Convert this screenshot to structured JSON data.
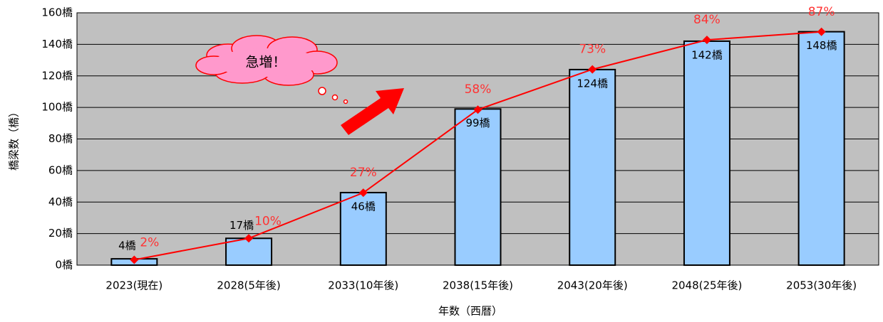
{
  "chart_data": {
    "type": "bar",
    "x_label": "年数（西暦）",
    "y_label": "橋梁数（橋）",
    "annotation": "急増！",
    "categories": [
      "2023(現在)",
      "2028(5年後)",
      "2033(10年後)",
      "2038(15年後)",
      "2043(20年後)",
      "2048(25年後)",
      "2053(30年後)"
    ],
    "series": [
      {
        "type": "bar",
        "color": "#99ccff",
        "values": [
          4,
          17,
          46,
          99,
          124,
          142,
          148
        ],
        "value_labels": [
          "4橋",
          "17橋",
          "46橋",
          "99橋",
          "124橋",
          "142橋",
          "148橋"
        ]
      },
      {
        "type": "line",
        "axis": "y2",
        "color": "#ff0000",
        "values": [
          2,
          10,
          27,
          58,
          73,
          84,
          87
        ],
        "value_labels": [
          "2%",
          "10%",
          "27%",
          "58%",
          "73%",
          "84%",
          "87%"
        ]
      }
    ],
    "ylim": [
      0,
      160
    ],
    "yticks": [
      {
        "value": 0,
        "label": "0橋"
      },
      {
        "value": 20,
        "label": "20橋"
      },
      {
        "value": 40,
        "label": "40橋"
      },
      {
        "value": 60,
        "label": "60橋"
      },
      {
        "value": 80,
        "label": "80橋"
      },
      {
        "value": 100,
        "label": "100橋"
      },
      {
        "value": 120,
        "label": "120橋"
      },
      {
        "value": 140,
        "label": "140橋"
      },
      {
        "value": 160,
        "label": "160橋"
      }
    ],
    "y2lim": [
      0,
      94.1
    ],
    "grid": true,
    "plot_background": "#c0c0c0"
  }
}
